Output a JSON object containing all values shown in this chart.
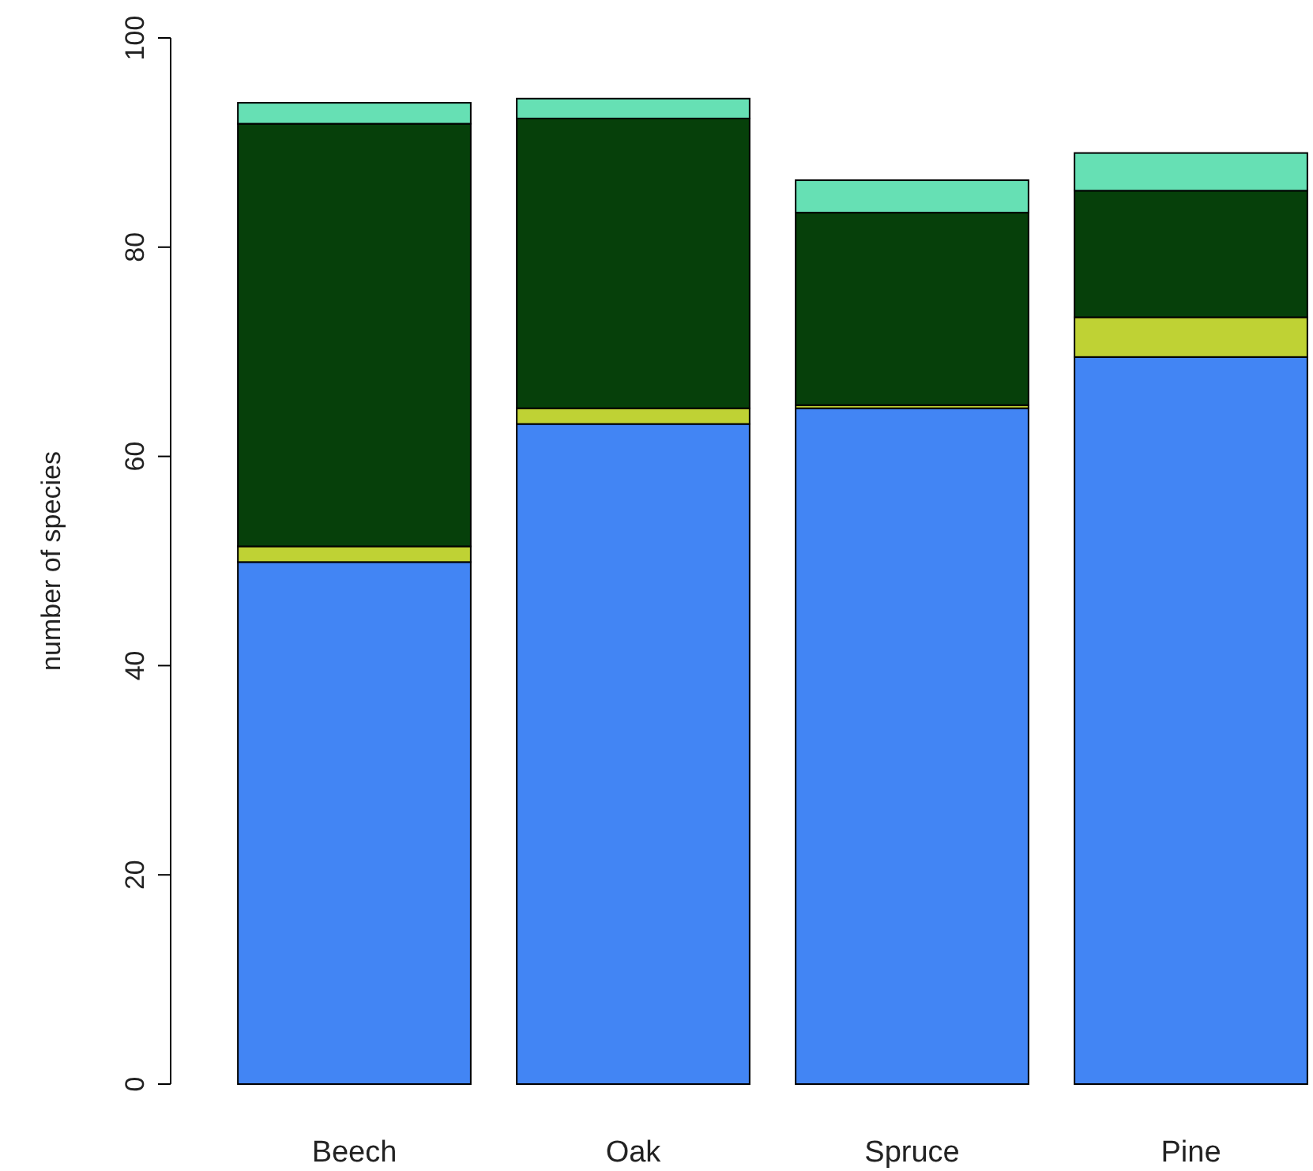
{
  "chart_data": {
    "type": "bar",
    "stacked": true,
    "ylabel": "number of species",
    "categories": [
      "Beech",
      "Oak",
      "Spruce",
      "Pine"
    ],
    "series": [
      {
        "color": "#4285f4",
        "values": [
          49.9,
          63.1,
          64.6,
          69.5
        ]
      },
      {
        "color": "#bfd234",
        "values": [
          1.5,
          1.5,
          0.3,
          3.8
        ]
      },
      {
        "color": "#06400a",
        "values": [
          40.4,
          27.7,
          18.4,
          12.1
        ]
      },
      {
        "color": "#66e0b4",
        "values": [
          2.0,
          1.9,
          3.1,
          3.6
        ]
      }
    ],
    "ylim": [
      0,
      100
    ],
    "yticks": [
      0,
      20,
      40,
      60,
      80,
      100
    ]
  }
}
